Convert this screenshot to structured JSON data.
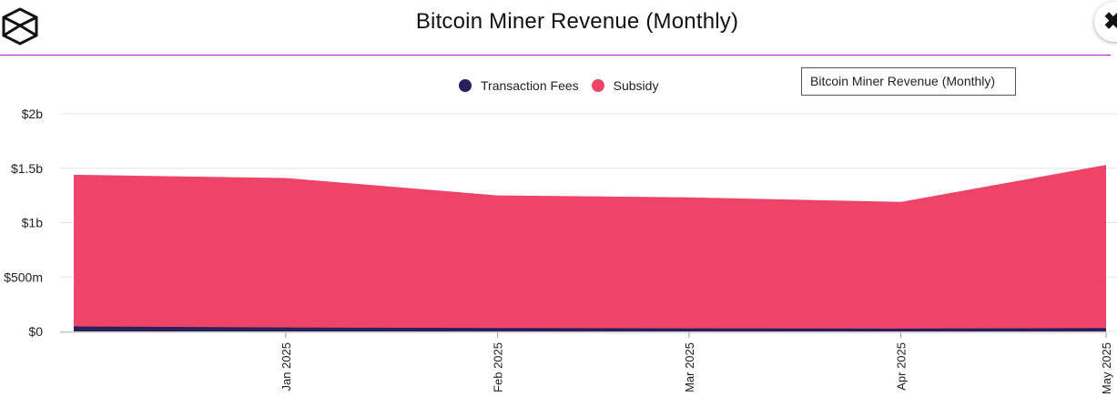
{
  "header": {
    "title": "Bitcoin Miner Revenue (Monthly)",
    "close_label": "✖"
  },
  "tooltip": {
    "text": "Bitcoin Miner Revenue (Monthly)"
  },
  "colors": {
    "transaction_fees": "#2b1f5c",
    "subsidy": "#ee4468",
    "accent": "#a020c8"
  },
  "chart_data": {
    "type": "area",
    "stacked": true,
    "title": "Bitcoin Miner Revenue (Monthly)",
    "xlabel": "",
    "ylabel": "",
    "ylim": [
      0,
      2000000000
    ],
    "y_ticks": [
      {
        "value": 0,
        "label": "$0"
      },
      {
        "value": 500000000,
        "label": "$500m"
      },
      {
        "value": 1000000000,
        "label": "$1b"
      },
      {
        "value": 1500000000,
        "label": "$1.5b"
      },
      {
        "value": 2000000000,
        "label": "$2b"
      }
    ],
    "x_ticks": [
      "Jan 2025",
      "Feb 2025",
      "Mar 2025",
      "Apr 2025",
      "May 2025"
    ],
    "x": [
      "2024-12-01",
      "2025-01-01",
      "2025-02-01",
      "2025-03-01",
      "2025-04-01",
      "2025-05-01"
    ],
    "legend": [
      "Transaction Fees",
      "Subsidy"
    ],
    "legend_position": "top-center",
    "series": [
      {
        "name": "Transaction Fees",
        "values": [
          40000000,
          30000000,
          25000000,
          22000000,
          20000000,
          25000000
        ]
      },
      {
        "name": "Subsidy",
        "values": [
          1400000000,
          1380000000,
          1225000000,
          1210000000,
          1170000000,
          1505000000
        ]
      }
    ],
    "grid": true
  }
}
